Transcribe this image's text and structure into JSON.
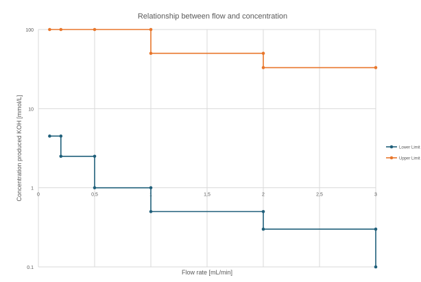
{
  "chart_data": {
    "type": "line",
    "title": "Relationship between flow and concentration",
    "xlabel": "Flow rate [mL/min]",
    "ylabel": "Concentration produced KOH [mmol/L]",
    "x_scale": "linear",
    "y_scale": "log",
    "xlim": [
      0,
      3
    ],
    "ylim": [
      0.1,
      100
    ],
    "x_ticks": [
      0,
      0.5,
      1,
      1.5,
      2,
      2.5,
      3
    ],
    "x_tick_labels": [
      "0",
      "0,5",
      "1",
      "1,5",
      "2",
      "2,5",
      "3"
    ],
    "y_ticks": [
      0.1,
      1,
      10,
      100
    ],
    "y_tick_labels": [
      "0.1",
      "1",
      "10",
      "100"
    ],
    "grid": true,
    "legend_position": "right",
    "series": [
      {
        "name": "Lower Limit",
        "color": "#1f5f7a",
        "points": [
          [
            0.1,
            4.5
          ],
          [
            0.2,
            4.5
          ],
          [
            0.2,
            2.5
          ],
          [
            0.5,
            2.5
          ],
          [
            0.5,
            1.0
          ],
          [
            1.0,
            1.0
          ],
          [
            1.0,
            0.5
          ],
          [
            2.0,
            0.5
          ],
          [
            2.0,
            0.3
          ],
          [
            3.0,
            0.3
          ],
          [
            3.0,
            0.1
          ]
        ]
      },
      {
        "name": "Upper Limit",
        "color": "#e8762b",
        "points": [
          [
            0.1,
            100
          ],
          [
            0.2,
            100
          ],
          [
            0.5,
            100
          ],
          [
            1.0,
            100
          ],
          [
            1.0,
            50
          ],
          [
            2.0,
            50
          ],
          [
            2.0,
            33
          ],
          [
            3.0,
            33
          ]
        ]
      }
    ]
  }
}
